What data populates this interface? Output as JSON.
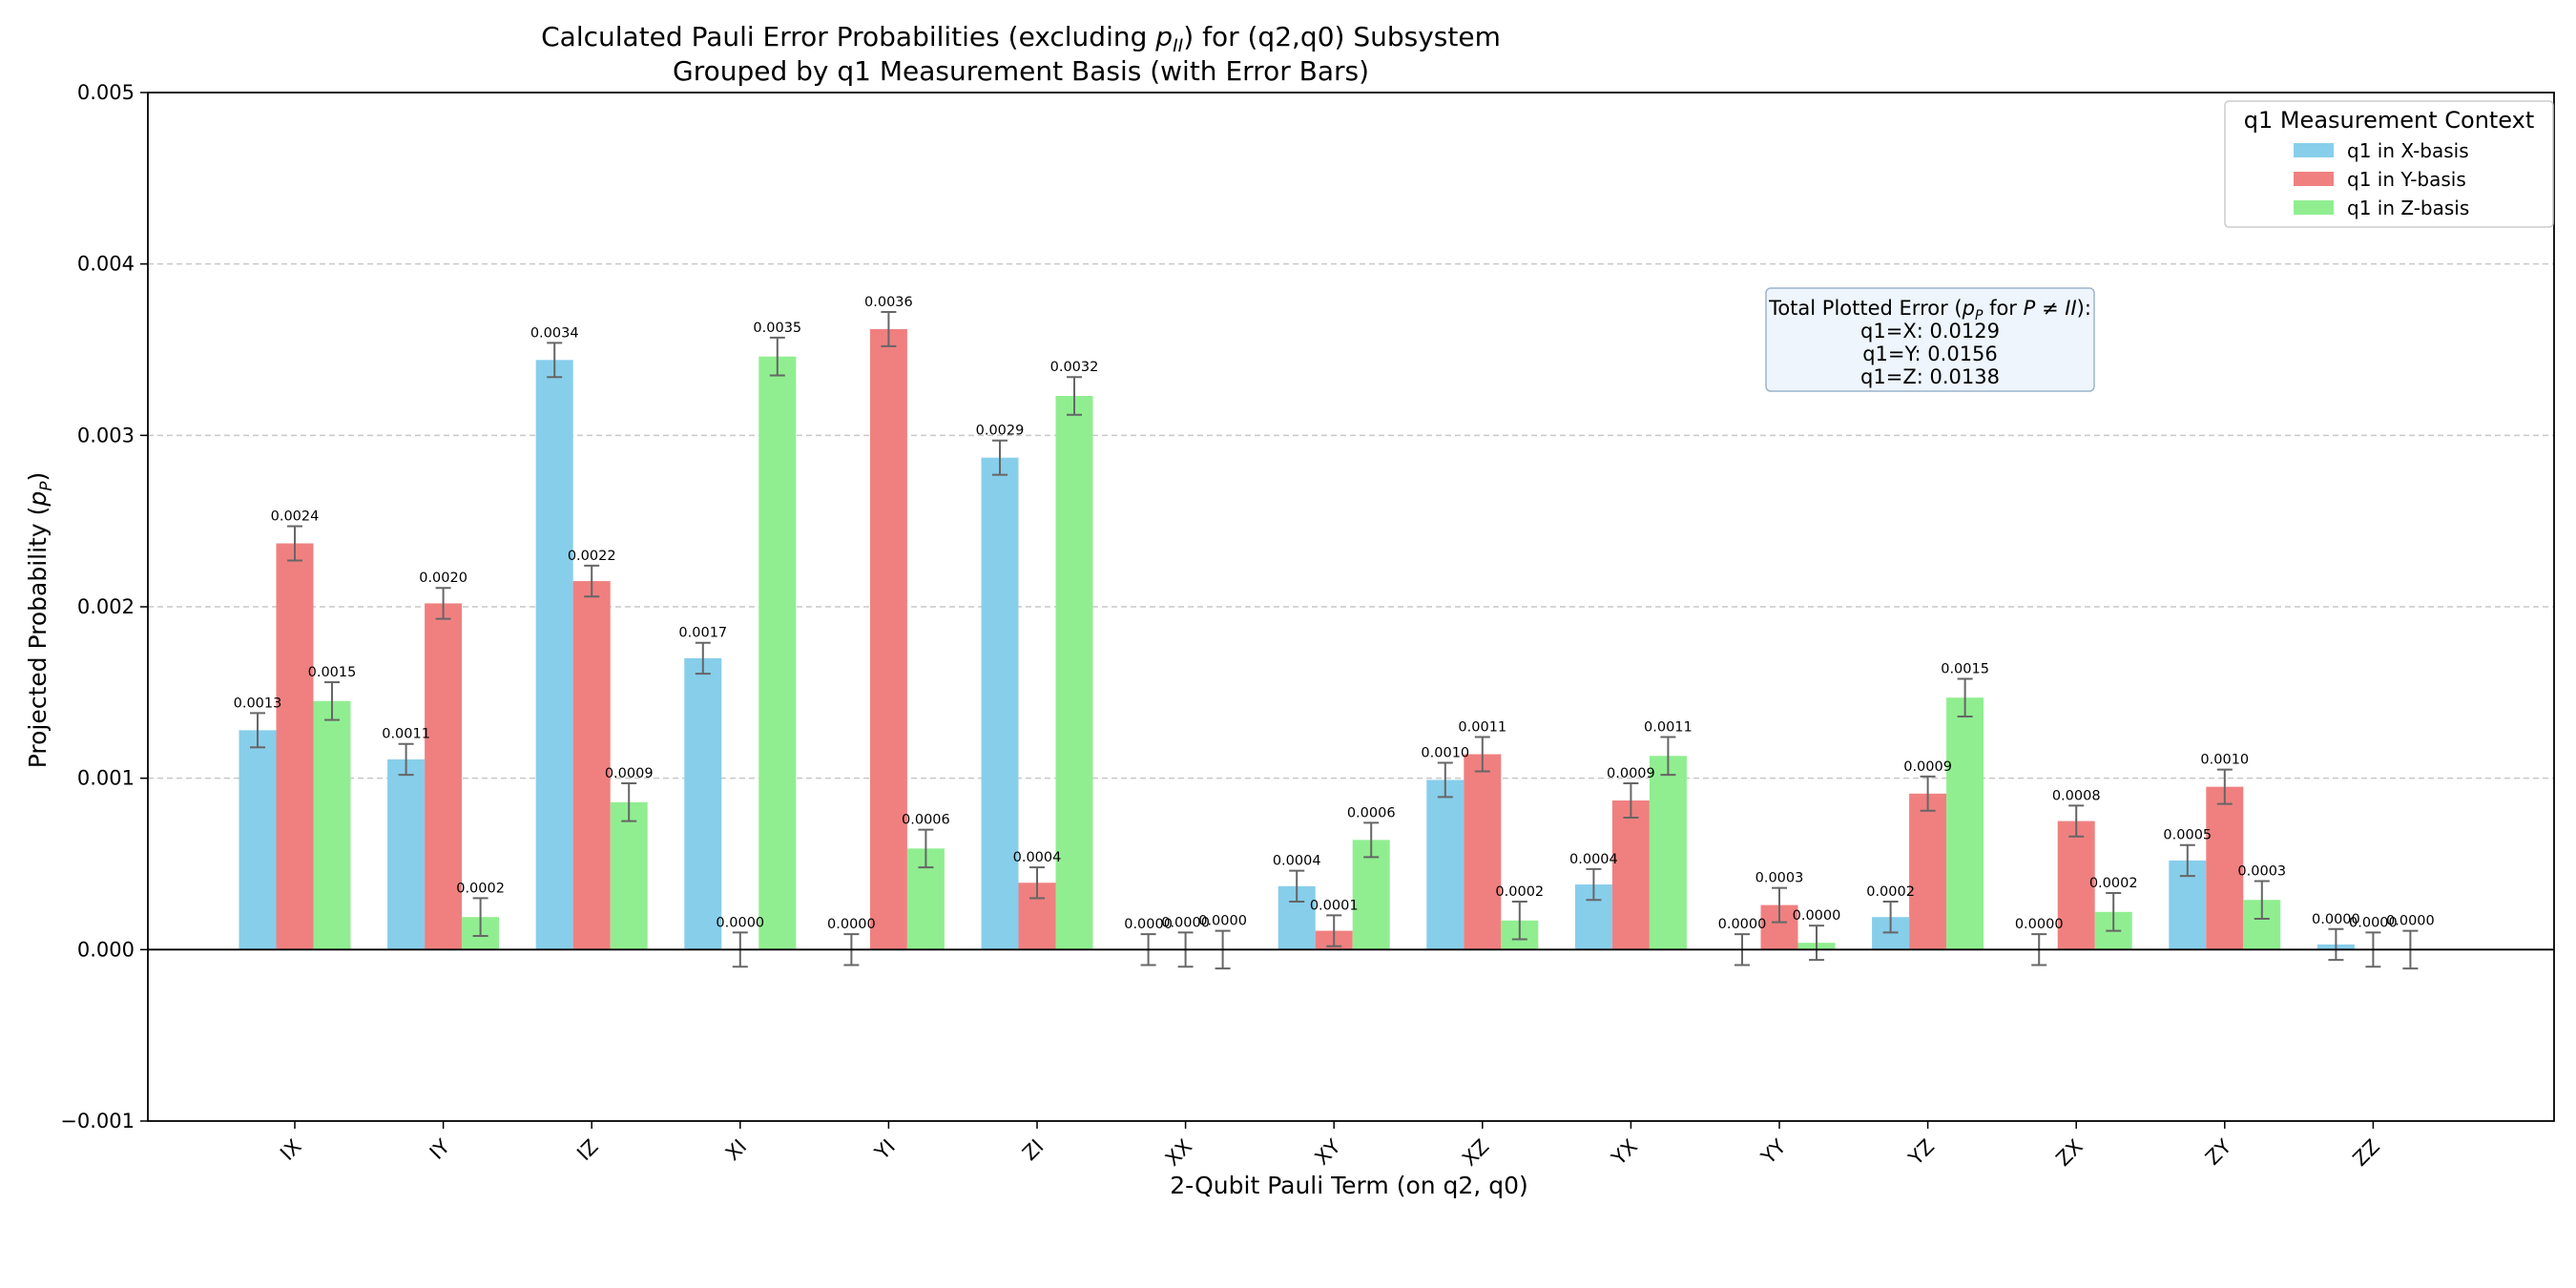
{
  "chart_data": {
    "type": "bar",
    "title": "Calculated Pauli Error Probabilities (excluding p_II) for (q2,q0) Subsystem",
    "subtitle": "Grouped by q1 Measurement Basis (with Error Bars)",
    "xlabel": "2-Qubit Pauli Term (on q2, q0)",
    "ylabel": "Projected Probability (p_P)",
    "ylim": [
      -0.001,
      0.005
    ],
    "yticks": [
      -0.001,
      0.0,
      0.001,
      0.002,
      0.003,
      0.004,
      0.005
    ],
    "ytick_labels": [
      "−0.001",
      "0.000",
      "0.001",
      "0.002",
      "0.003",
      "0.004",
      "0.005"
    ],
    "grid": "horizontal-dashed",
    "legend_title": "q1 Measurement Context",
    "legend_position": "top-right",
    "categories": [
      "IX",
      "IY",
      "IZ",
      "XI",
      "YI",
      "ZI",
      "XX",
      "XY",
      "XZ",
      "YX",
      "YY",
      "YZ",
      "ZX",
      "ZY",
      "ZZ"
    ],
    "series": [
      {
        "name": "q1 in X-basis",
        "color": "#87ceeb",
        "values": [
          0.00128,
          0.00111,
          0.00344,
          0.0017,
          0.0,
          0.00287,
          0.0,
          0.00037,
          0.00099,
          0.00038,
          0.0,
          0.00019,
          0.0,
          0.00052,
          3e-05
        ],
        "errors": [
          0.0001,
          9e-05,
          0.0001,
          9e-05,
          9e-05,
          0.0001,
          9e-05,
          9e-05,
          0.0001,
          9e-05,
          9e-05,
          9e-05,
          9e-05,
          9e-05,
          9e-05
        ],
        "labels": [
          "0.0013",
          "0.0011",
          "0.0034",
          "0.0017",
          "0.0000",
          "0.0029",
          "0.0000",
          "0.0004",
          "0.0010",
          "0.0004",
          "0.0000",
          "0.0002",
          "0.0000",
          "0.0005",
          "0.0000"
        ]
      },
      {
        "name": "q1 in Y-basis",
        "color": "#f08080",
        "values": [
          0.00237,
          0.00202,
          0.00215,
          0.0,
          0.00362,
          0.00039,
          0.0,
          0.00011,
          0.00114,
          0.00087,
          0.00026,
          0.00091,
          0.00075,
          0.00095,
          0.0
        ],
        "errors": [
          0.0001,
          9e-05,
          9e-05,
          0.0001,
          0.0001,
          9e-05,
          0.0001,
          9e-05,
          0.0001,
          0.0001,
          0.0001,
          0.0001,
          9e-05,
          0.0001,
          0.0001
        ],
        "labels": [
          "0.0024",
          "0.0020",
          "0.0022",
          "0.0000",
          "0.0036",
          "0.0004",
          "0.0000",
          "0.0001",
          "0.0011",
          "0.0009",
          "0.0003",
          "0.0009",
          "0.0008",
          "0.0010",
          "0.0000"
        ]
      },
      {
        "name": "q1 in Z-basis",
        "color": "#90ee90",
        "values": [
          0.00145,
          0.00019,
          0.00086,
          0.00346,
          0.00059,
          0.00323,
          0.0,
          0.00064,
          0.00017,
          0.00113,
          4e-05,
          0.00147,
          0.00022,
          0.00029,
          0.0
        ],
        "errors": [
          0.00011,
          0.00011,
          0.00011,
          0.00011,
          0.00011,
          0.00011,
          0.00011,
          0.0001,
          0.00011,
          0.00011,
          0.0001,
          0.00011,
          0.00011,
          0.00011,
          0.00011
        ],
        "labels": [
          "0.0015",
          "0.0002",
          "0.0009",
          "0.0035",
          "0.0006",
          "0.0032",
          "0.0000",
          "0.0006",
          "0.0002",
          "0.0011",
          "0.0000",
          "0.0015",
          "0.0002",
          "0.0003",
          "0.0000"
        ]
      }
    ],
    "annotation": {
      "heading": "Total Plotted Error (p_P for P≠II):",
      "lines": [
        "q1=X: 0.0129",
        "q1=Y: 0.0156",
        "q1=Z: 0.0138"
      ]
    }
  }
}
